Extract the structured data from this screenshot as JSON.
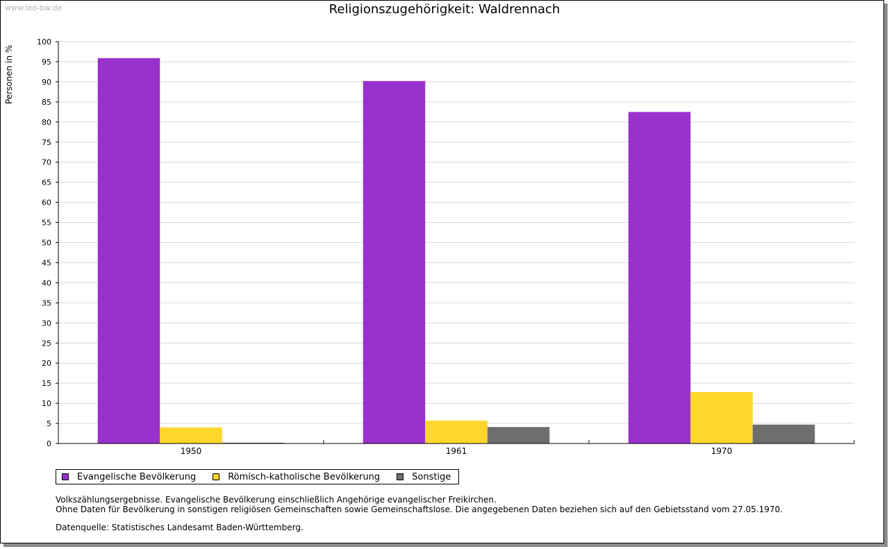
{
  "watermark": "www.leo-bw.de",
  "notes": {
    "line1": "Volkszählungsergebnisse. Evangelische Bevölkerung einschließlich Angehörige evangelischer Freikirchen.",
    "line2": "Ohne Daten für Bevölkerung in sonstigen religiösen Gemeinschaften sowie Gemeinschaftslose. Die angegebenen Daten beziehen sich auf den Gebietsstand vom 27.05.1970.",
    "source": "Datenquelle: Statistisches Landesamt Baden-Württemberg."
  },
  "chart_data": {
    "type": "bar",
    "title": "Religionszugehörigkeit: Waldrennach",
    "xlabel": "",
    "ylabel": "Personen in %",
    "ylim": [
      0,
      100
    ],
    "ytick_step": 5,
    "grid": true,
    "legend_position": "bottom-left",
    "categories": [
      "1950",
      "1961",
      "1970"
    ],
    "series": [
      {
        "name": "Evangelische Bevölkerung",
        "color": "#9932cc",
        "values": [
          95.9,
          90.2,
          82.5
        ]
      },
      {
        "name": "Römisch-katholische Bevölkerung",
        "color": "#ffd62b",
        "values": [
          4.0,
          5.7,
          12.8
        ]
      },
      {
        "name": "Sonstige",
        "color": "#6e6e6e",
        "values": [
          0.2,
          4.1,
          4.7
        ]
      }
    ]
  }
}
